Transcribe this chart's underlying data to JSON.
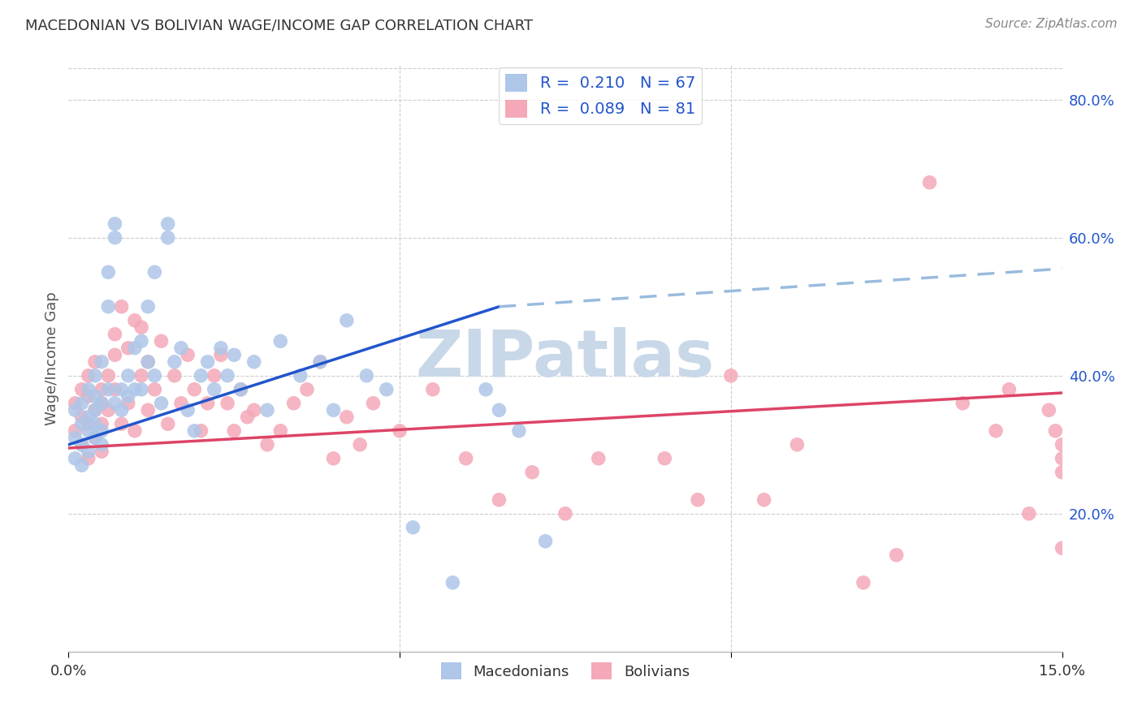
{
  "title": "MACEDONIAN VS BOLIVIAN WAGE/INCOME GAP CORRELATION CHART",
  "source": "Source: ZipAtlas.com",
  "ylabel": "Wage/Income Gap",
  "xlabel_macedonians": "Macedonians",
  "xlabel_bolivians": "Bolivians",
  "xlim": [
    0.0,
    0.15
  ],
  "ylim": [
    0.0,
    0.85
  ],
  "yticks_right": [
    0.2,
    0.4,
    0.6,
    0.8
  ],
  "ytick_labels_right": [
    "20.0%",
    "40.0%",
    "60.0%",
    "80.0%"
  ],
  "macedonian_R": "0.210",
  "macedonian_N": "67",
  "bolivian_R": "0.089",
  "bolivian_N": "81",
  "macedonian_color": "#aec6e8",
  "bolivian_color": "#f4a8b8",
  "trend_macedonian_color": "#2255cc",
  "trend_bolivian_color": "#dd4466",
  "trend_macedonian_dashed_color": "#99bbdd",
  "background_color": "#ffffff",
  "watermark_text": "ZIPatlas",
  "watermark_color": "#c8d8e8",
  "trend_mac_x0": 0.0,
  "trend_mac_y0": 0.3,
  "trend_mac_x1": 0.065,
  "trend_mac_y1": 0.5,
  "trend_mac_dash_x1": 0.15,
  "trend_mac_dash_y1": 0.555,
  "trend_bol_x0": 0.0,
  "trend_bol_y0": 0.295,
  "trend_bol_x1": 0.15,
  "trend_bol_y1": 0.375,
  "macedonian_scatter_x": [
    0.001,
    0.001,
    0.001,
    0.002,
    0.002,
    0.002,
    0.002,
    0.003,
    0.003,
    0.003,
    0.003,
    0.004,
    0.004,
    0.004,
    0.004,
    0.004,
    0.005,
    0.005,
    0.005,
    0.005,
    0.006,
    0.006,
    0.006,
    0.007,
    0.007,
    0.007,
    0.008,
    0.008,
    0.009,
    0.009,
    0.01,
    0.01,
    0.011,
    0.011,
    0.012,
    0.012,
    0.013,
    0.013,
    0.014,
    0.015,
    0.015,
    0.016,
    0.017,
    0.018,
    0.019,
    0.02,
    0.021,
    0.022,
    0.023,
    0.024,
    0.025,
    0.026,
    0.028,
    0.03,
    0.032,
    0.035,
    0.038,
    0.04,
    0.042,
    0.045,
    0.048,
    0.052,
    0.058,
    0.063,
    0.065,
    0.068,
    0.072
  ],
  "macedonian_scatter_y": [
    0.31,
    0.28,
    0.35,
    0.3,
    0.33,
    0.36,
    0.27,
    0.32,
    0.38,
    0.34,
    0.29,
    0.35,
    0.4,
    0.33,
    0.37,
    0.31,
    0.36,
    0.32,
    0.42,
    0.3,
    0.5,
    0.38,
    0.55,
    0.36,
    0.6,
    0.62,
    0.38,
    0.35,
    0.4,
    0.37,
    0.44,
    0.38,
    0.45,
    0.38,
    0.42,
    0.5,
    0.4,
    0.55,
    0.36,
    0.6,
    0.62,
    0.42,
    0.44,
    0.35,
    0.32,
    0.4,
    0.42,
    0.38,
    0.44,
    0.4,
    0.43,
    0.38,
    0.42,
    0.35,
    0.45,
    0.4,
    0.42,
    0.35,
    0.48,
    0.4,
    0.38,
    0.18,
    0.1,
    0.38,
    0.35,
    0.32,
    0.16
  ],
  "bolivian_scatter_x": [
    0.001,
    0.001,
    0.002,
    0.002,
    0.002,
    0.003,
    0.003,
    0.003,
    0.003,
    0.004,
    0.004,
    0.004,
    0.005,
    0.005,
    0.005,
    0.005,
    0.006,
    0.006,
    0.007,
    0.007,
    0.007,
    0.008,
    0.008,
    0.009,
    0.009,
    0.01,
    0.01,
    0.011,
    0.011,
    0.012,
    0.012,
    0.013,
    0.014,
    0.015,
    0.016,
    0.017,
    0.018,
    0.019,
    0.02,
    0.021,
    0.022,
    0.023,
    0.024,
    0.025,
    0.026,
    0.027,
    0.028,
    0.03,
    0.032,
    0.034,
    0.036,
    0.038,
    0.04,
    0.042,
    0.044,
    0.046,
    0.05,
    0.055,
    0.06,
    0.065,
    0.07,
    0.075,
    0.08,
    0.09,
    0.095,
    0.1,
    0.105,
    0.11,
    0.12,
    0.125,
    0.13,
    0.135,
    0.14,
    0.142,
    0.145,
    0.148,
    0.149,
    0.15,
    0.15,
    0.15,
    0.15
  ],
  "bolivian_scatter_y": [
    0.32,
    0.36,
    0.3,
    0.34,
    0.38,
    0.28,
    0.33,
    0.37,
    0.4,
    0.31,
    0.35,
    0.42,
    0.29,
    0.36,
    0.33,
    0.38,
    0.4,
    0.35,
    0.43,
    0.38,
    0.46,
    0.33,
    0.5,
    0.36,
    0.44,
    0.32,
    0.48,
    0.4,
    0.47,
    0.35,
    0.42,
    0.38,
    0.45,
    0.33,
    0.4,
    0.36,
    0.43,
    0.38,
    0.32,
    0.36,
    0.4,
    0.43,
    0.36,
    0.32,
    0.38,
    0.34,
    0.35,
    0.3,
    0.32,
    0.36,
    0.38,
    0.42,
    0.28,
    0.34,
    0.3,
    0.36,
    0.32,
    0.38,
    0.28,
    0.22,
    0.26,
    0.2,
    0.28,
    0.28,
    0.22,
    0.4,
    0.22,
    0.3,
    0.1,
    0.14,
    0.68,
    0.36,
    0.32,
    0.38,
    0.2,
    0.35,
    0.32,
    0.3,
    0.28,
    0.26,
    0.15
  ]
}
